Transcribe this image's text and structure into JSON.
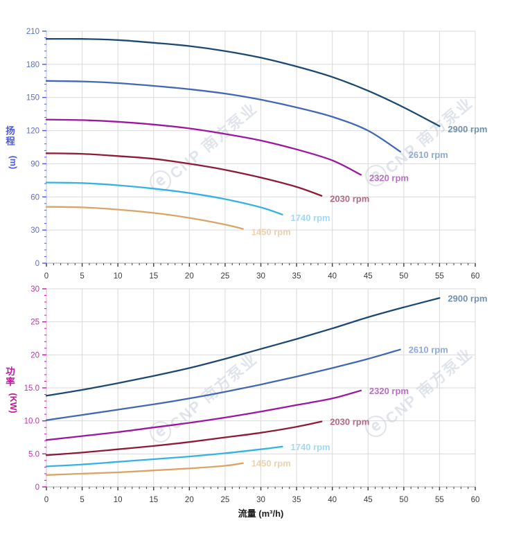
{
  "watermark": {
    "logo": "ⓔ",
    "brand": "CNP 南方泵业",
    "color": "#c3cbd9"
  },
  "chart_data": [
    {
      "id": "head-chart",
      "type": "line",
      "title": "",
      "xlabel": "",
      "ylabel": "扬程 (m)",
      "ylabel_chars": [
        "扬",
        "程"
      ],
      "ylabel_unit": "(m)",
      "axis_color": "#4a5be0",
      "tick_label_color": "#5b6be4",
      "x_tick_label_color": "#3a3a3a",
      "grid": true,
      "grid_color": "#d9d9d9",
      "xlim": [
        0,
        60
      ],
      "ylim": [
        0,
        210
      ],
      "xticks": [
        0,
        5,
        10,
        15,
        20,
        25,
        30,
        35,
        40,
        45,
        50,
        55,
        60
      ],
      "yticks": [
        0,
        30,
        60,
        90,
        120,
        150,
        180,
        210
      ],
      "ytick_labels": [
        "0",
        "30",
        "60",
        "90",
        "120",
        "150",
        "180",
        "210"
      ],
      "x_minor_step": 1,
      "y_minor_step": 6,
      "legend_position": "curve-end-labels",
      "series": [
        {
          "name": "2900 rpm",
          "color": "#1b4971",
          "label_color": "#7190ad",
          "points": [
            [
              0,
              203
            ],
            [
              5,
              203
            ],
            [
              10,
              202
            ],
            [
              15,
              199.5
            ],
            [
              20,
              196.5
            ],
            [
              25,
              192
            ],
            [
              30,
              186
            ],
            [
              35,
              178
            ],
            [
              40,
              168.5
            ],
            [
              45,
              156
            ],
            [
              50,
              141
            ],
            [
              55,
              124
            ]
          ]
        },
        {
          "name": "2610 rpm",
          "color": "#4168b4",
          "label_color": "#8fa9d8",
          "points": [
            [
              0,
              165
            ],
            [
              5,
              164.5
            ],
            [
              10,
              163
            ],
            [
              15,
              160.5
            ],
            [
              20,
              157.5
            ],
            [
              25,
              153.5
            ],
            [
              30,
              148
            ],
            [
              35,
              141
            ],
            [
              40,
              132.5
            ],
            [
              45,
              120
            ],
            [
              49.5,
              101
            ]
          ]
        },
        {
          "name": "2320 rpm",
          "color": "#9c16a0",
          "label_color": "#b870c3",
          "points": [
            [
              0,
              130
            ],
            [
              5,
              129.5
            ],
            [
              10,
              128
            ],
            [
              15,
              125.5
            ],
            [
              20,
              122
            ],
            [
              25,
              117
            ],
            [
              30,
              111
            ],
            [
              35,
              103
            ],
            [
              40,
              93
            ],
            [
              44,
              80
            ]
          ]
        },
        {
          "name": "2030 rpm",
          "color": "#8e1a38",
          "label_color": "#b16a84",
          "points": [
            [
              0,
              99.5
            ],
            [
              5,
              99
            ],
            [
              10,
              97
            ],
            [
              15,
              94.5
            ],
            [
              20,
              90
            ],
            [
              25,
              84.5
            ],
            [
              30,
              77.5
            ],
            [
              35,
              69
            ],
            [
              38.5,
              61
            ]
          ]
        },
        {
          "name": "1740 rpm",
          "color": "#35b1e6",
          "label_color": "#a3d9f5",
          "points": [
            [
              0,
              73
            ],
            [
              5,
              72.5
            ],
            [
              10,
              70.5
            ],
            [
              15,
              67.5
            ],
            [
              20,
              63.5
            ],
            [
              25,
              58
            ],
            [
              30,
              50.5
            ],
            [
              33,
              44
            ]
          ]
        },
        {
          "name": "1450 rpm",
          "color": "#d9a465",
          "label_color": "#ecd2ab",
          "points": [
            [
              0,
              51
            ],
            [
              5,
              50.5
            ],
            [
              10,
              48.5
            ],
            [
              15,
              45.5
            ],
            [
              20,
              41
            ],
            [
              25,
              35
            ],
            [
              27.5,
              31
            ]
          ]
        }
      ]
    },
    {
      "id": "power-chart",
      "type": "line",
      "title": "",
      "xlabel": "流量 (m³/h)",
      "ylabel": "功率 (KW)",
      "ylabel_chars": [
        "功",
        "率"
      ],
      "ylabel_unit": "(KW)",
      "axis_color": "#c0189a",
      "tick_label_color": "#c52fa4",
      "x_tick_label_color": "#3a3a3a",
      "grid": true,
      "grid_color": "#d9d9d9",
      "xlim": [
        0,
        60
      ],
      "ylim": [
        0,
        30
      ],
      "xticks": [
        0,
        5,
        10,
        15,
        20,
        25,
        30,
        35,
        40,
        45,
        50,
        55,
        60
      ],
      "yticks": [
        0,
        5,
        10,
        15,
        20,
        25,
        30
      ],
      "ytick_labels": [
        "0",
        "5.0",
        "10.0",
        "15.0",
        "20",
        "25",
        "30"
      ],
      "x_minor_step": 1,
      "y_minor_step": 1,
      "legend_position": "curve-end-labels",
      "series": [
        {
          "name": "2900 rpm",
          "color": "#1b4971",
          "label_color": "#7190ad",
          "points": [
            [
              0,
              13.8
            ],
            [
              5,
              14.7
            ],
            [
              10,
              15.7
            ],
            [
              15,
              16.8
            ],
            [
              20,
              18
            ],
            [
              25,
              19.4
            ],
            [
              30,
              20.9
            ],
            [
              35,
              22.4
            ],
            [
              40,
              24
            ],
            [
              45,
              25.7
            ],
            [
              50,
              27.2
            ],
            [
              55,
              28.6
            ]
          ]
        },
        {
          "name": "2610 rpm",
          "color": "#4168b4",
          "label_color": "#8fa9d8",
          "points": [
            [
              0,
              10.1
            ],
            [
              5,
              10.9
            ],
            [
              10,
              11.7
            ],
            [
              15,
              12.5
            ],
            [
              20,
              13.4
            ],
            [
              25,
              14.4
            ],
            [
              30,
              15.5
            ],
            [
              35,
              16.7
            ],
            [
              40,
              18
            ],
            [
              45,
              19.4
            ],
            [
              49.5,
              20.8
            ]
          ]
        },
        {
          "name": "2320 rpm",
          "color": "#9c16a0",
          "label_color": "#b870c3",
          "points": [
            [
              0,
              7.1
            ],
            [
              5,
              7.7
            ],
            [
              10,
              8.3
            ],
            [
              15,
              9
            ],
            [
              20,
              9.7
            ],
            [
              25,
              10.5
            ],
            [
              30,
              11.4
            ],
            [
              35,
              12.4
            ],
            [
              40,
              13.4
            ],
            [
              44,
              14.6
            ]
          ]
        },
        {
          "name": "2030 rpm",
          "color": "#8e1a38",
          "label_color": "#b16a84",
          "points": [
            [
              0,
              4.8
            ],
            [
              5,
              5.2
            ],
            [
              10,
              5.7
            ],
            [
              15,
              6.2
            ],
            [
              20,
              6.8
            ],
            [
              25,
              7.5
            ],
            [
              30,
              8.2
            ],
            [
              35,
              9.1
            ],
            [
              38.5,
              9.9
            ]
          ]
        },
        {
          "name": "1740 rpm",
          "color": "#35b1e6",
          "label_color": "#a3d9f5",
          "points": [
            [
              0,
              3.1
            ],
            [
              5,
              3.4
            ],
            [
              10,
              3.8
            ],
            [
              15,
              4.2
            ],
            [
              20,
              4.6
            ],
            [
              25,
              5.1
            ],
            [
              30,
              5.7
            ],
            [
              33,
              6.1
            ]
          ]
        },
        {
          "name": "1450 rpm",
          "color": "#d9a465",
          "label_color": "#ecd2ab",
          "points": [
            [
              0,
              1.8
            ],
            [
              5,
              2
            ],
            [
              10,
              2.2
            ],
            [
              15,
              2.5
            ],
            [
              20,
              2.8
            ],
            [
              25,
              3.2
            ],
            [
              27.5,
              3.6
            ]
          ]
        }
      ]
    }
  ]
}
